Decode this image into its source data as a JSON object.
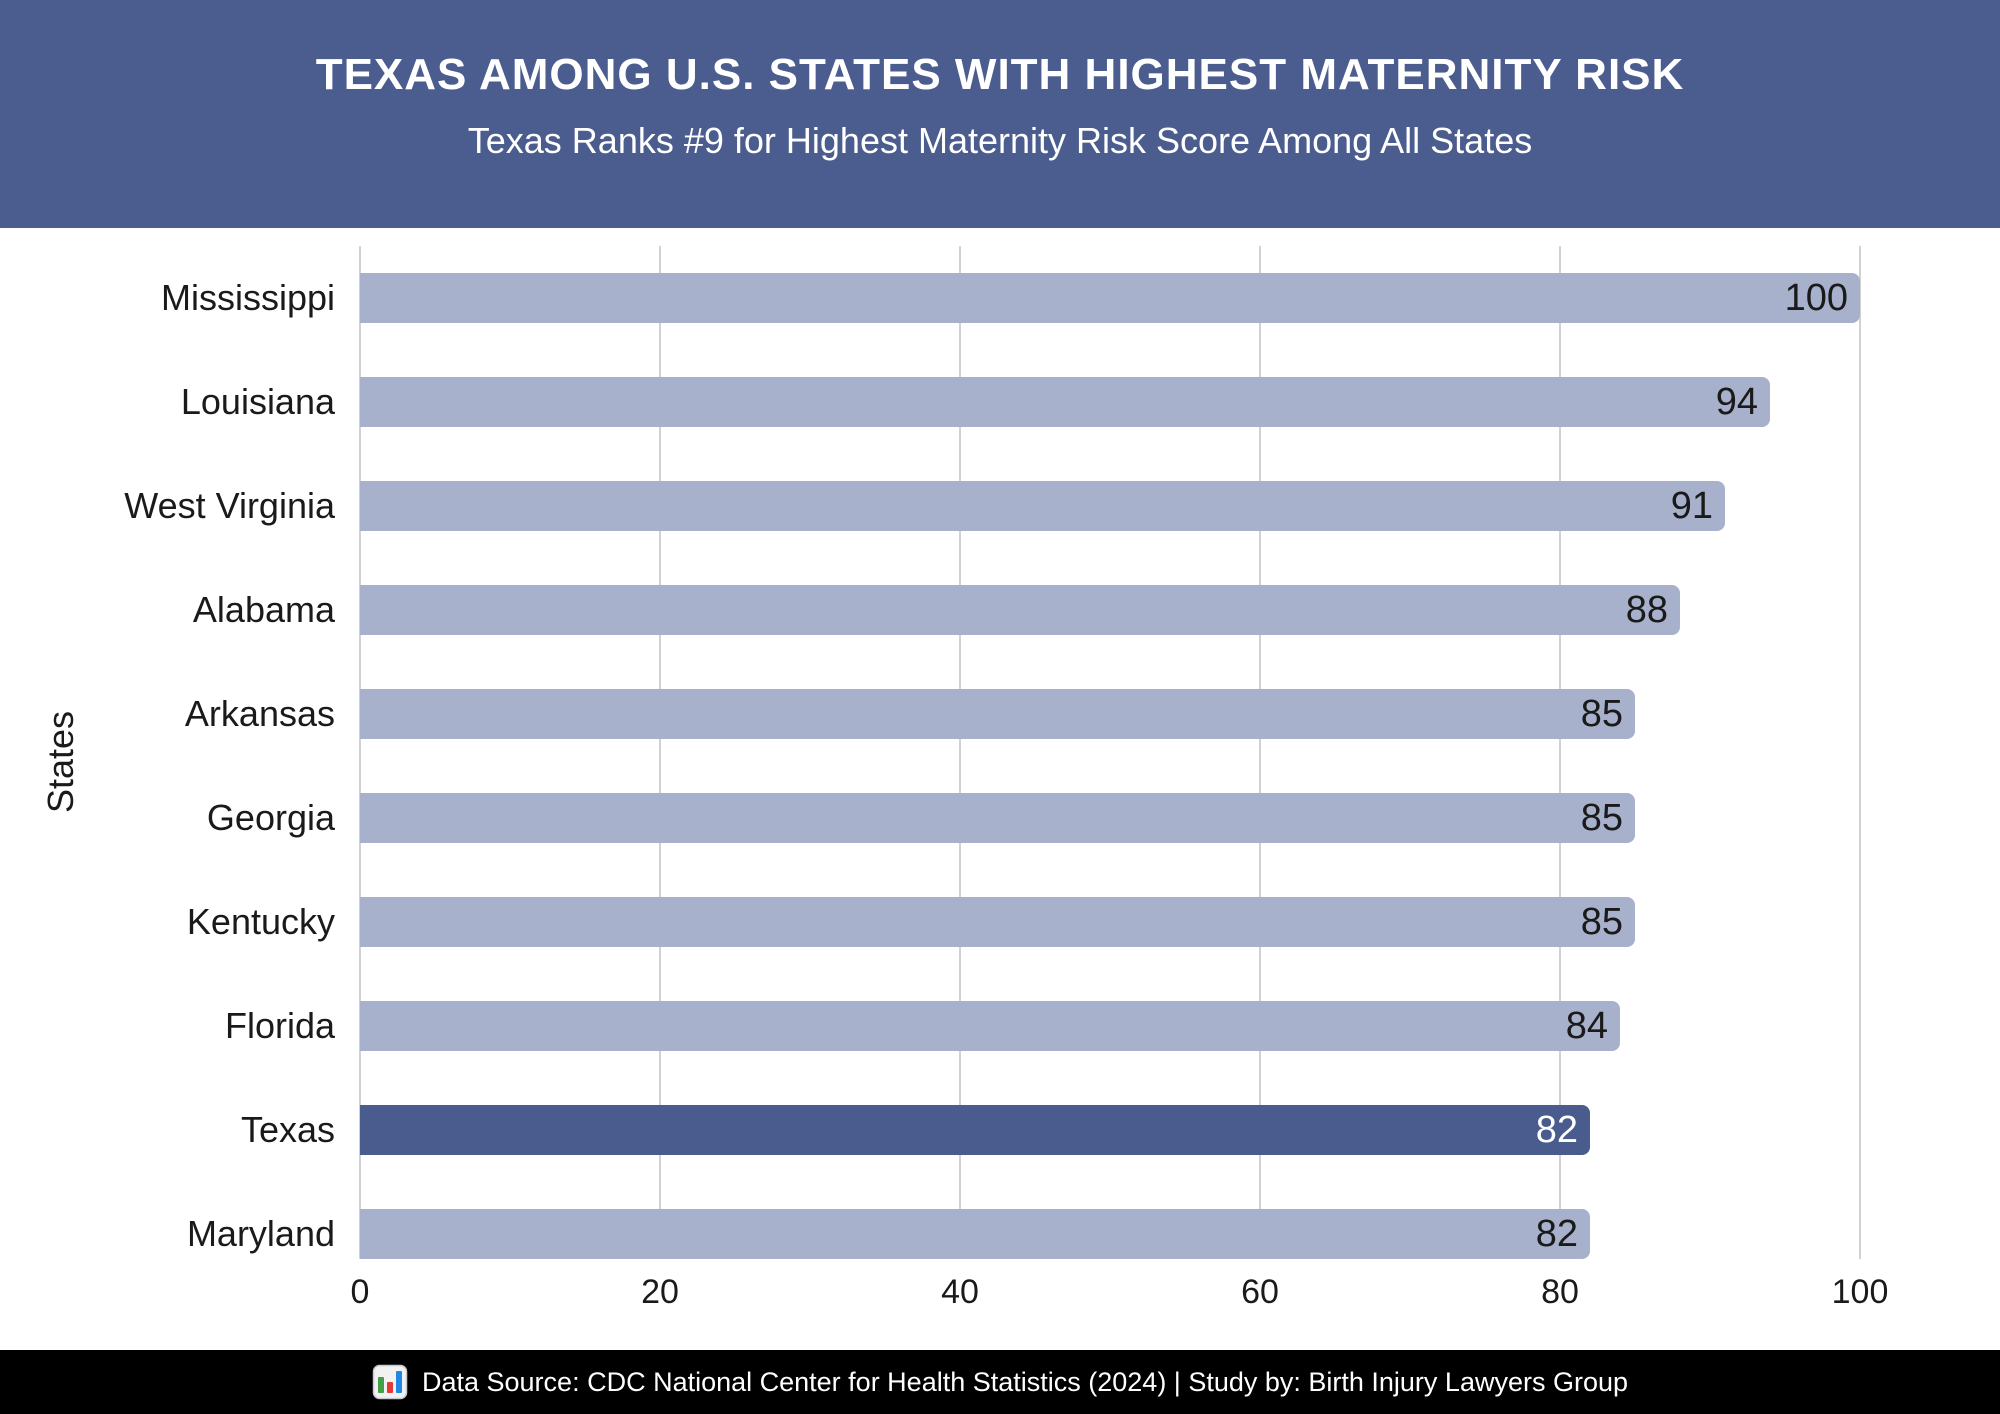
{
  "chart_data": {
    "type": "bar",
    "orientation": "horizontal",
    "title": "TEXAS AMONG U.S. STATES WITH HIGHEST MATERNITY RISK",
    "subtitle": "Texas Ranks #9 for Highest Maternity Risk Score Among All States",
    "categories": [
      "Mississippi",
      "Louisiana",
      "West Virginia",
      "Alabama",
      "Arkansas",
      "Georgia",
      "Kentucky",
      "Florida",
      "Texas",
      "Maryland"
    ],
    "values": [
      100,
      94,
      91,
      88,
      85,
      85,
      85,
      84,
      82,
      82
    ],
    "highlight_category": "Texas",
    "value_labels_inside_bars": true,
    "xlabel": "",
    "ylabel": "States",
    "xlim": [
      0,
      100
    ],
    "xticks": [
      0,
      20,
      40,
      60,
      80,
      100
    ],
    "grid": "vertical",
    "legend": "none"
  },
  "colors": {
    "header_bg": "#4B5C8E",
    "bar": "#A8B1CC",
    "bar_highlight": "#4A5C8E",
    "gridline": "#D2D2D2",
    "value_label": "#1A1A1A",
    "value_label_highlight": "#FFFFFF",
    "footer_bg": "#000000",
    "footer_text": "#FFFFFF"
  },
  "footer": {
    "icon": "bar-chart-emoji",
    "text": "Data Source: CDC National Center for Health Statistics (2024) | Study by: Birth Injury Lawyers Group"
  }
}
